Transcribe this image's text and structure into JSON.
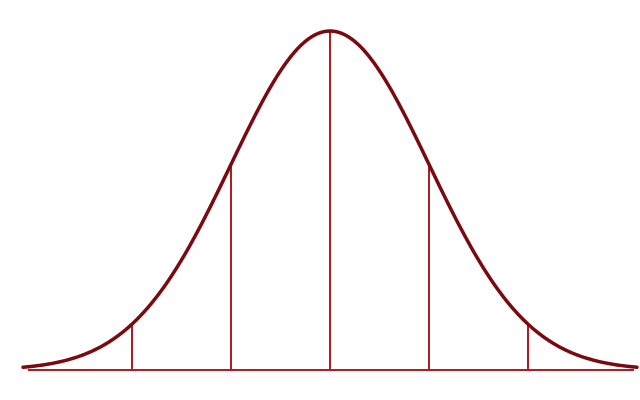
{
  "chart_data": {
    "type": "line",
    "distribution": "normal",
    "mean": 0,
    "sd": 1,
    "xlim": [
      -3.1,
      3.1
    ],
    "ylim": [
      0,
      1
    ],
    "series": [
      {
        "x": [
          -3.1,
          -3.0,
          -2.8,
          -2.6,
          -2.4,
          -2.2,
          -2.0,
          -1.8,
          -1.6,
          -1.4,
          -1.2,
          -1.0,
          -0.8,
          -0.6,
          -0.4,
          -0.2,
          0.0,
          0.2,
          0.4,
          0.6,
          0.8,
          1.0,
          1.2,
          1.4,
          1.6,
          1.8,
          2.0,
          2.2,
          2.4,
          2.6,
          2.8,
          3.0,
          3.1
        ],
        "values": [
          0.008,
          0.011,
          0.02,
          0.034,
          0.056,
          0.089,
          0.135,
          0.198,
          0.278,
          0.375,
          0.487,
          0.607,
          0.726,
          0.835,
          0.923,
          0.98,
          1.0,
          0.98,
          0.923,
          0.835,
          0.726,
          0.607,
          0.487,
          0.375,
          0.278,
          0.198,
          0.135,
          0.089,
          0.056,
          0.034,
          0.02,
          0.011,
          0.008
        ]
      }
    ],
    "vertical_lines_x": [
      -2,
      -1,
      0,
      1,
      2
    ],
    "grid": false,
    "legend": "none",
    "axis_labels": false,
    "colors": {
      "curve": "#7a0a10",
      "vertical_lines": "#b01d25",
      "baseline": "#b01d25"
    }
  }
}
